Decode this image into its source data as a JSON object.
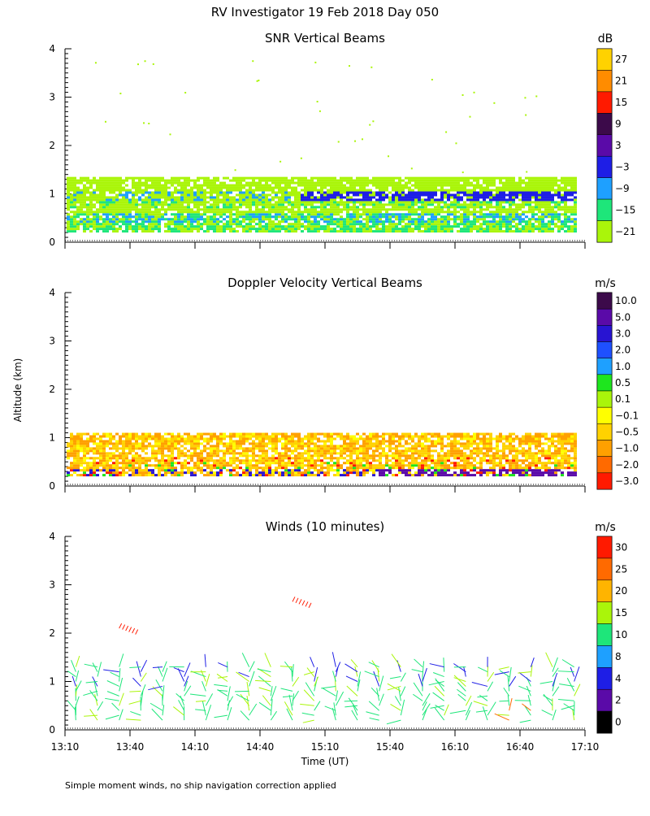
{
  "header": {
    "title": "RV Investigator  19 Feb 2018 Day 050"
  },
  "footer": {
    "note": "Simple moment winds, no ship navigation correction applied"
  },
  "axes": {
    "ylabel": "Altitude (km)",
    "xlabel": "Time (UT)",
    "xticks": [
      "13:10",
      "13:40",
      "14:10",
      "14:40",
      "15:10",
      "15:40",
      "16:10",
      "16:40",
      "17:10"
    ],
    "yticks": [
      "0",
      "1",
      "2",
      "3",
      "4"
    ]
  },
  "chart_data": [
    {
      "type": "heatmap",
      "title": "SNR Vertical Beams",
      "colorbar": {
        "unit": "dB",
        "labels": [
          "27",
          "21",
          "15",
          "9",
          "3",
          "−3",
          "−9",
          "−15",
          "−21"
        ],
        "colors": [
          "#ffd200",
          "#ff8c00",
          "#ff1a00",
          "#3c0a4a",
          "#5a0aa8",
          "#1e1ee6",
          "#1ea0ff",
          "#1ee67a",
          "#aaf50a"
        ]
      },
      "xlim": [
        "13:10",
        "17:10"
      ],
      "ylim": [
        0,
        4
      ],
      "layers": [
        {
          "alt_range": [
            0.2,
            1.35
          ],
          "dominant_colors": [
            "#aaf50a",
            "#1ee67a"
          ]
        },
        {
          "alt_range": [
            0.2,
            0.6
          ],
          "dominant_colors": [
            "#1ee67a",
            "#1ea0ff"
          ]
        },
        {
          "alt_range": [
            0.9,
            1.05
          ],
          "dominant_colors": [
            "#1ea0ff",
            "#1e1ee6"
          ]
        }
      ]
    },
    {
      "type": "heatmap",
      "title": "Doppler Velocity Vertical Beams",
      "colorbar": {
        "unit": "m/s",
        "labels": [
          "10.0",
          "5.0",
          "3.0",
          "2.0",
          "1.0",
          "0.5",
          "0.1",
          "−0.1",
          "−0.5",
          "−1.0",
          "−2.0",
          "−3.0"
        ],
        "colors": [
          "#3c0a4a",
          "#5a0aa8",
          "#2814d2",
          "#1e50ff",
          "#1ea0ff",
          "#1ee61e",
          "#aaf50a",
          "#ffff00",
          "#ffd200",
          "#ffa000",
          "#ff6a00",
          "#ff1a00"
        ]
      },
      "xlim": [
        "13:10",
        "17:10"
      ],
      "ylim": [
        0,
        4
      ],
      "layers": [
        {
          "alt_range": [
            0.2,
            1.1
          ],
          "dominant_colors": [
            "#ffd200",
            "#ffa000"
          ]
        },
        {
          "alt_range": [
            0.2,
            0.35
          ],
          "dominant_colors": [
            "#5a0aa8",
            "#2814d2"
          ]
        }
      ]
    },
    {
      "type": "scatter",
      "title": "Winds (10 minutes)",
      "colorbar": {
        "unit": "m/s",
        "labels": [
          "30",
          "25",
          "20",
          "15",
          "10",
          "8",
          "4",
          "2",
          "0"
        ],
        "colors": [
          "#ff1a00",
          "#ff6a00",
          "#ffb400",
          "#aaf50a",
          "#1ee67a",
          "#1ea0ff",
          "#1e1ee6",
          "#5a0aa8",
          "#000000"
        ]
      },
      "xlim": [
        "13:10",
        "17:10"
      ],
      "ylim": [
        0,
        4
      ],
      "profile_times_min": [
        795,
        805,
        815,
        825,
        835,
        845,
        855,
        865,
        875,
        885,
        895,
        905,
        915,
        925,
        935,
        945,
        955,
        965,
        975,
        985,
        995,
        1005,
        1015,
        1025
      ],
      "alt_range_km": [
        0.2,
        1.4
      ]
    }
  ]
}
